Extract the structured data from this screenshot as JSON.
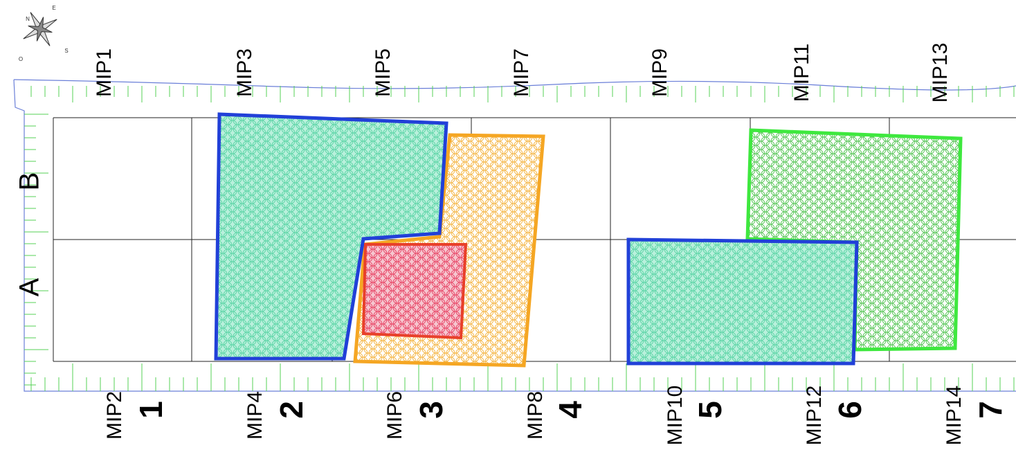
{
  "compass": {
    "labels": [
      "N",
      "E",
      "S",
      "O"
    ]
  },
  "columns": {
    "top": [
      "MIP1",
      "MIP3",
      "MIP5",
      "MIP7",
      "MIP9",
      "MIP11",
      "MIP13"
    ],
    "bottom": [
      "MIP2",
      "MIP4",
      "MIP6",
      "MIP8",
      "MIP10",
      "MIP12",
      "MIP14"
    ],
    "numbers": [
      "1",
      "2",
      "3",
      "4",
      "5",
      "6",
      "7"
    ]
  },
  "rows": [
    "A",
    "B"
  ]
}
